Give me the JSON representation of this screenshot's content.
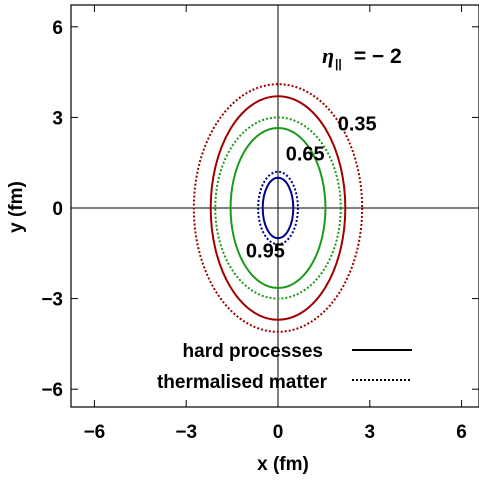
{
  "chart_data": {
    "type": "line",
    "xlabel": "x (fm)",
    "ylabel": "y (fm)",
    "xlim": [
      -6.8,
      6.8
    ],
    "ylim": [
      -6.8,
      6.8
    ],
    "x_ticks": [
      -6,
      -3,
      0,
      3,
      6
    ],
    "y_ticks": [
      -6,
      -3,
      0,
      3,
      6
    ],
    "x_tick_labels": [
      "−6",
      "−3",
      "0",
      "3",
      "6"
    ],
    "y_tick_labels": [
      "−6",
      "−3",
      "0",
      "3",
      "6"
    ],
    "annotation": {
      "eta_symbol": "η",
      "eta_subscript": "||",
      "eta_rest": " = − 2"
    },
    "contour_labels": [
      {
        "text": "0.35",
        "x": 2.0,
        "y": 2.8
      },
      {
        "text": "0.65",
        "x": 0.3,
        "y": 1.8
      },
      {
        "text": "0.95",
        "x": -1.0,
        "y": -1.4
      }
    ],
    "series": [
      {
        "name": "hard processes",
        "level": "0.35",
        "style": "solid",
        "color": "#a00000",
        "rx": 2.2,
        "ry": 3.7
      },
      {
        "name": "thermalised matter",
        "level": "0.35",
        "style": "dotted",
        "color": "#a00000",
        "rx": 2.75,
        "ry": 4.1
      },
      {
        "name": "hard processes",
        "level": "0.65",
        "style": "solid",
        "color": "#1a9a1a",
        "rx": 1.55,
        "ry": 2.65
      },
      {
        "name": "thermalised matter",
        "level": "0.65",
        "style": "dotted",
        "color": "#1a9a1a",
        "rx": 2.05,
        "ry": 3.0
      },
      {
        "name": "hard processes",
        "level": "0.95",
        "style": "solid",
        "color": "#00008b",
        "rx": 0.5,
        "ry": 1.0
      },
      {
        "name": "thermalised matter",
        "level": "0.95",
        "style": "dotted",
        "color": "#00008b",
        "rx": 0.65,
        "ry": 1.2
      }
    ],
    "legend": {
      "position": "bottom",
      "entries": [
        {
          "label": "hard processes",
          "style": "solid"
        },
        {
          "label": "thermalised matter",
          "style": "dotted"
        }
      ]
    },
    "grid": false
  }
}
